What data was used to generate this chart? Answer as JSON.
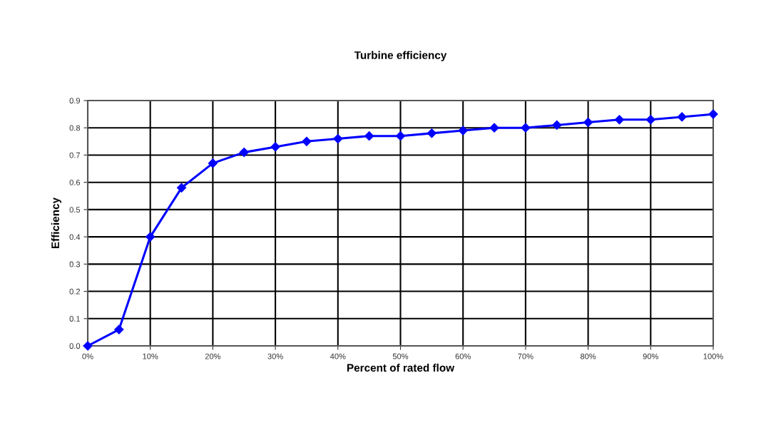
{
  "chart_data": {
    "type": "line",
    "title": "Turbine efficiency",
    "xlabel": "Percent of rated flow",
    "ylabel": "Efficiency",
    "x": [
      0,
      5,
      10,
      15,
      20,
      25,
      30,
      35,
      40,
      45,
      50,
      55,
      60,
      65,
      70,
      75,
      80,
      85,
      90,
      95,
      100
    ],
    "series": [
      {
        "color": "#0000ff",
        "values": [
          0,
          0.06,
          0.4,
          0.58,
          0.67,
          0.71,
          0.73,
          0.75,
          0.76,
          0.77,
          0.77,
          0.78,
          0.79,
          0.8,
          0.8,
          0.81,
          0.82,
          0.83,
          0.83,
          0.84,
          0.85
        ]
      }
    ],
    "xlim": [
      0,
      100
    ],
    "xticks": [
      {
        "value": 0,
        "label": "0%"
      },
      {
        "value": 10,
        "label": "10%"
      },
      {
        "value": 20,
        "label": "20%"
      },
      {
        "value": 30,
        "label": "30%"
      },
      {
        "value": 40,
        "label": "40%"
      },
      {
        "value": 50,
        "label": "50%"
      },
      {
        "value": 60,
        "label": "60%"
      },
      {
        "value": 70,
        "label": "70%"
      },
      {
        "value": 80,
        "label": "80%"
      },
      {
        "value": 90,
        "label": "90%"
      },
      {
        "value": 100,
        "label": "100%"
      }
    ],
    "ylim": [
      0,
      0.9
    ],
    "yticks": [
      {
        "value": 0,
        "label": "0.0"
      },
      {
        "value": 0.1,
        "label": "0.1"
      },
      {
        "value": 0.2,
        "label": "0.2"
      },
      {
        "value": 0.3,
        "label": "0.3"
      },
      {
        "value": 0.4,
        "label": "0.4"
      },
      {
        "value": 0.5,
        "label": "0.5"
      },
      {
        "value": 0.6,
        "label": "0.6"
      },
      {
        "value": 0.7,
        "label": "0.7"
      },
      {
        "value": 0.8,
        "label": "0.8"
      },
      {
        "value": 0.9,
        "label": "0.9"
      }
    ],
    "grid": true,
    "marker": "diamond",
    "line_style": "solid"
  }
}
